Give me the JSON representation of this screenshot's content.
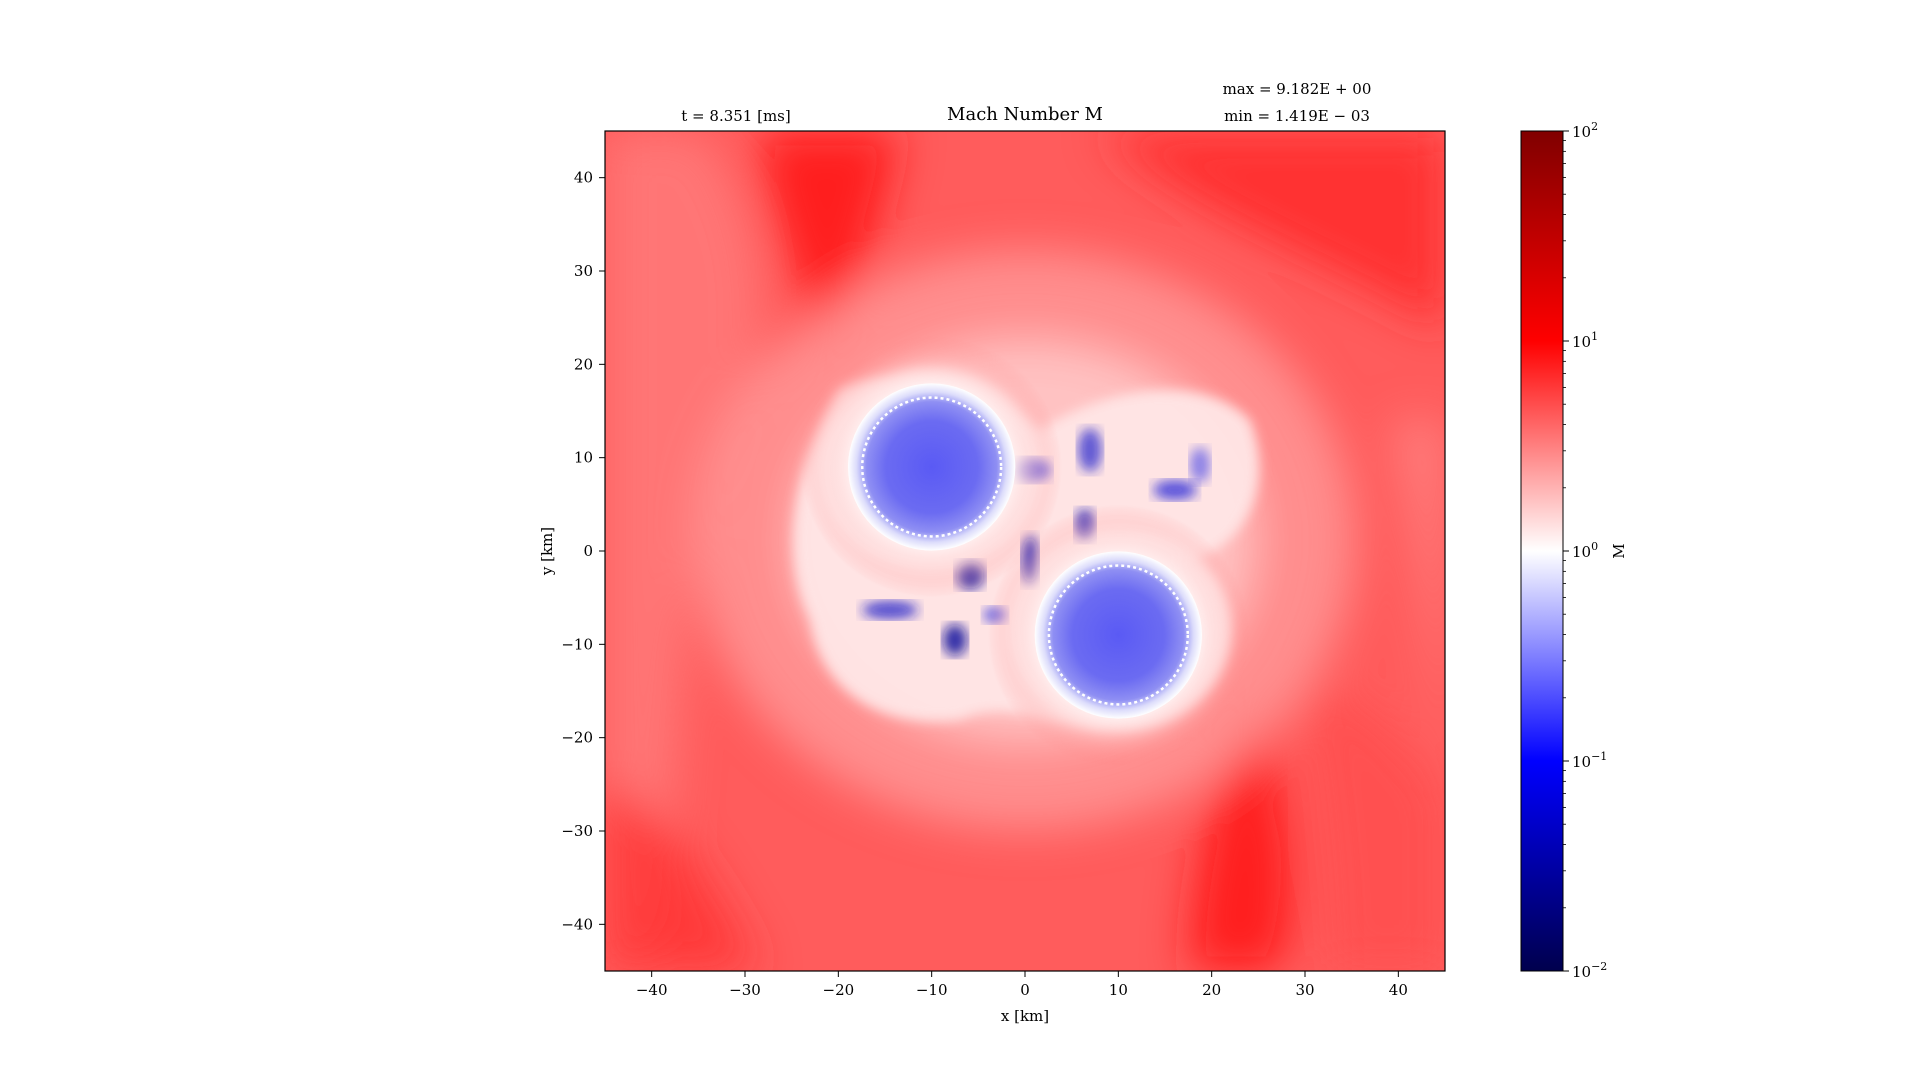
{
  "chart_data": {
    "type": "heatmap",
    "title": "Mach Number M",
    "time_annotation": "t = 8.351 [ms]",
    "max_annotation": "max = 9.182E + 00",
    "min_annotation": "min = 1.419E − 03",
    "xlabel": "x [km]",
    "ylabel": "y [km]",
    "xlim": [
      -45,
      45
    ],
    "ylim": [
      -45,
      45
    ],
    "xticks": [
      -40,
      -30,
      -20,
      -10,
      0,
      10,
      20,
      30,
      40
    ],
    "yticks": [
      -40,
      -30,
      -20,
      -10,
      0,
      10,
      20,
      30,
      40
    ],
    "xtick_labels": [
      "−40",
      "−30",
      "−20",
      "−10",
      "0",
      "10",
      "20",
      "30",
      "40"
    ],
    "ytick_labels": [
      "−40",
      "−30",
      "−20",
      "−10",
      "0",
      "10",
      "20",
      "30",
      "40"
    ],
    "grid": false,
    "colormap": {
      "name": "seismic",
      "scale": "log",
      "range": [
        0.01,
        100
      ],
      "label": "M",
      "ticks": [
        {
          "value": 0.01,
          "base": "10",
          "exp": "−2"
        },
        {
          "value": 0.1,
          "base": "10",
          "exp": "−1"
        },
        {
          "value": 1,
          "base": "10",
          "exp": "0"
        },
        {
          "value": 10,
          "base": "10",
          "exp": "1"
        },
        {
          "value": 100,
          "base": "10",
          "exp": "2"
        }
      ],
      "colors": [
        "#00004d",
        "#0000ff",
        "#ffffff",
        "#ff0000",
        "#800000"
      ]
    },
    "features": [
      {
        "name": "star-core-1",
        "center": [
          -10,
          9
        ],
        "radius": 8,
        "mach": 0.25
      },
      {
        "name": "star-core-2",
        "center": [
          10,
          -9
        ],
        "radius": 8,
        "mach": 0.25
      }
    ],
    "background_mach": 4.5
  }
}
